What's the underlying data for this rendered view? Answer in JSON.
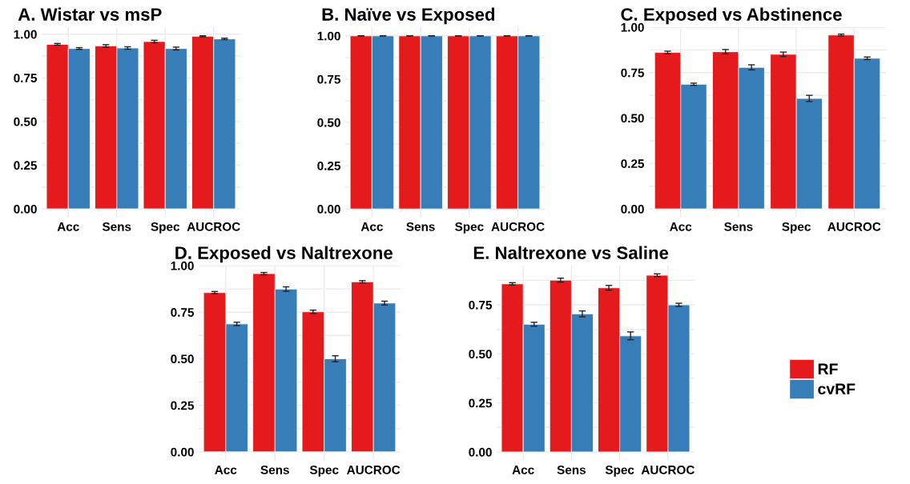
{
  "chart_data": [
    {
      "type": "bar",
      "title": "A. Wistar vs msP",
      "categories": [
        "Acc",
        "Sens",
        "Spec",
        "AUCROC"
      ],
      "ylim": [
        -0.05,
        1.04
      ],
      "yticks": [
        {
          "value": 0,
          "label": "0.00"
        },
        {
          "value": 0.25,
          "label": "0.25"
        },
        {
          "value": 0.5,
          "label": "0.50"
        },
        {
          "value": 0.75,
          "label": "0.75"
        },
        {
          "value": 1,
          "label": "1.00"
        }
      ],
      "grid": true,
      "legend": "right",
      "series": [
        {
          "name": "RF",
          "color": "#e41a1c",
          "values": [
            0.942,
            0.933,
            0.958,
            0.988
          ],
          "errors": [
            0.005,
            0.007,
            0.007,
            0.003
          ]
        },
        {
          "name": "cvRF",
          "color": "#377eb8",
          "values": [
            0.918,
            0.921,
            0.918,
            0.973
          ],
          "errors": [
            0.005,
            0.007,
            0.008,
            0.004
          ]
        }
      ]
    },
    {
      "type": "bar",
      "title": "B. Naïve vs Exposed",
      "categories": [
        "Acc",
        "Sens",
        "Spec",
        "AUCROC"
      ],
      "ylim": [
        -0.05,
        1.05
      ],
      "yticks": [
        {
          "value": 0,
          "label": "0.00"
        },
        {
          "value": 0.25,
          "label": "0.25"
        },
        {
          "value": 0.5,
          "label": "0.50"
        },
        {
          "value": 0.75,
          "label": "0.75"
        },
        {
          "value": 1,
          "label": "1.00"
        }
      ],
      "grid": true,
      "series": [
        {
          "name": "RF",
          "color": "#e41a1c",
          "values": [
            1.0,
            1.0,
            1.0,
            1.0
          ],
          "errors": [
            0,
            0,
            0,
            0
          ]
        },
        {
          "name": "cvRF",
          "color": "#377eb8",
          "values": [
            1.0,
            1.0,
            1.0,
            1.0
          ],
          "errors": [
            0,
            0,
            0,
            0
          ]
        }
      ]
    },
    {
      "type": "bar",
      "title": "C. Exposed vs Abstinence",
      "categories": [
        "Acc",
        "Sens",
        "Spec",
        "AUCROC"
      ],
      "ylim": [
        -0.048,
        1.0
      ],
      "yticks": [
        {
          "value": 0,
          "label": "0.00"
        },
        {
          "value": 0.25,
          "label": "0.25"
        },
        {
          "value": 0.5,
          "label": "0.50"
        },
        {
          "value": 0.75,
          "label": "0.75"
        },
        {
          "value": 1,
          "label": "1.00"
        }
      ],
      "grid": true,
      "series": [
        {
          "name": "RF",
          "color": "#e41a1c",
          "values": [
            0.861,
            0.865,
            0.851,
            0.957
          ],
          "errors": [
            0.007,
            0.012,
            0.012,
            0.005
          ]
        },
        {
          "name": "cvRF",
          "color": "#377eb8",
          "values": [
            0.686,
            0.779,
            0.608,
            0.829
          ],
          "errors": [
            0.006,
            0.014,
            0.017,
            0.007
          ]
        }
      ]
    },
    {
      "type": "bar",
      "title": "D. Exposed vs Naltrexone",
      "categories": [
        "Acc",
        "Sens",
        "Spec",
        "AUCROC"
      ],
      "ylim": [
        -0.048,
        1.0
      ],
      "yticks": [
        {
          "value": 0,
          "label": "0.00"
        },
        {
          "value": 0.25,
          "label": "0.25"
        },
        {
          "value": 0.5,
          "label": "0.50"
        },
        {
          "value": 0.75,
          "label": "0.75"
        },
        {
          "value": 1,
          "label": "1.00"
        }
      ],
      "grid": true,
      "series": [
        {
          "name": "RF",
          "color": "#e41a1c",
          "values": [
            0.855,
            0.957,
            0.752,
            0.913
          ],
          "errors": [
            0.006,
            0.006,
            0.009,
            0.006
          ]
        },
        {
          "name": "cvRF",
          "color": "#377eb8",
          "values": [
            0.687,
            0.874,
            0.5,
            0.799
          ],
          "errors": [
            0.009,
            0.012,
            0.016,
            0.01
          ]
        }
      ]
    },
    {
      "type": "bar",
      "title": "E. Naltrexone vs Saline",
      "categories": [
        "Acc",
        "Sens",
        "Spec",
        "AUCROC"
      ],
      "ylim": [
        -0.045,
        0.95
      ],
      "yticks": [
        {
          "value": 0,
          "label": "0.00"
        },
        {
          "value": 0.25,
          "label": "0.25"
        },
        {
          "value": 0.5,
          "label": "0.50"
        },
        {
          "value": 0.75,
          "label": "0.75"
        }
      ],
      "grid": true,
      "series": [
        {
          "name": "RF",
          "color": "#e41a1c",
          "values": [
            0.857,
            0.876,
            0.837,
            0.901
          ],
          "errors": [
            0.006,
            0.01,
            0.012,
            0.007
          ]
        },
        {
          "name": "cvRF",
          "color": "#377eb8",
          "values": [
            0.651,
            0.704,
            0.592,
            0.75
          ],
          "errors": [
            0.01,
            0.015,
            0.02,
            0.008
          ]
        }
      ]
    }
  ]
}
